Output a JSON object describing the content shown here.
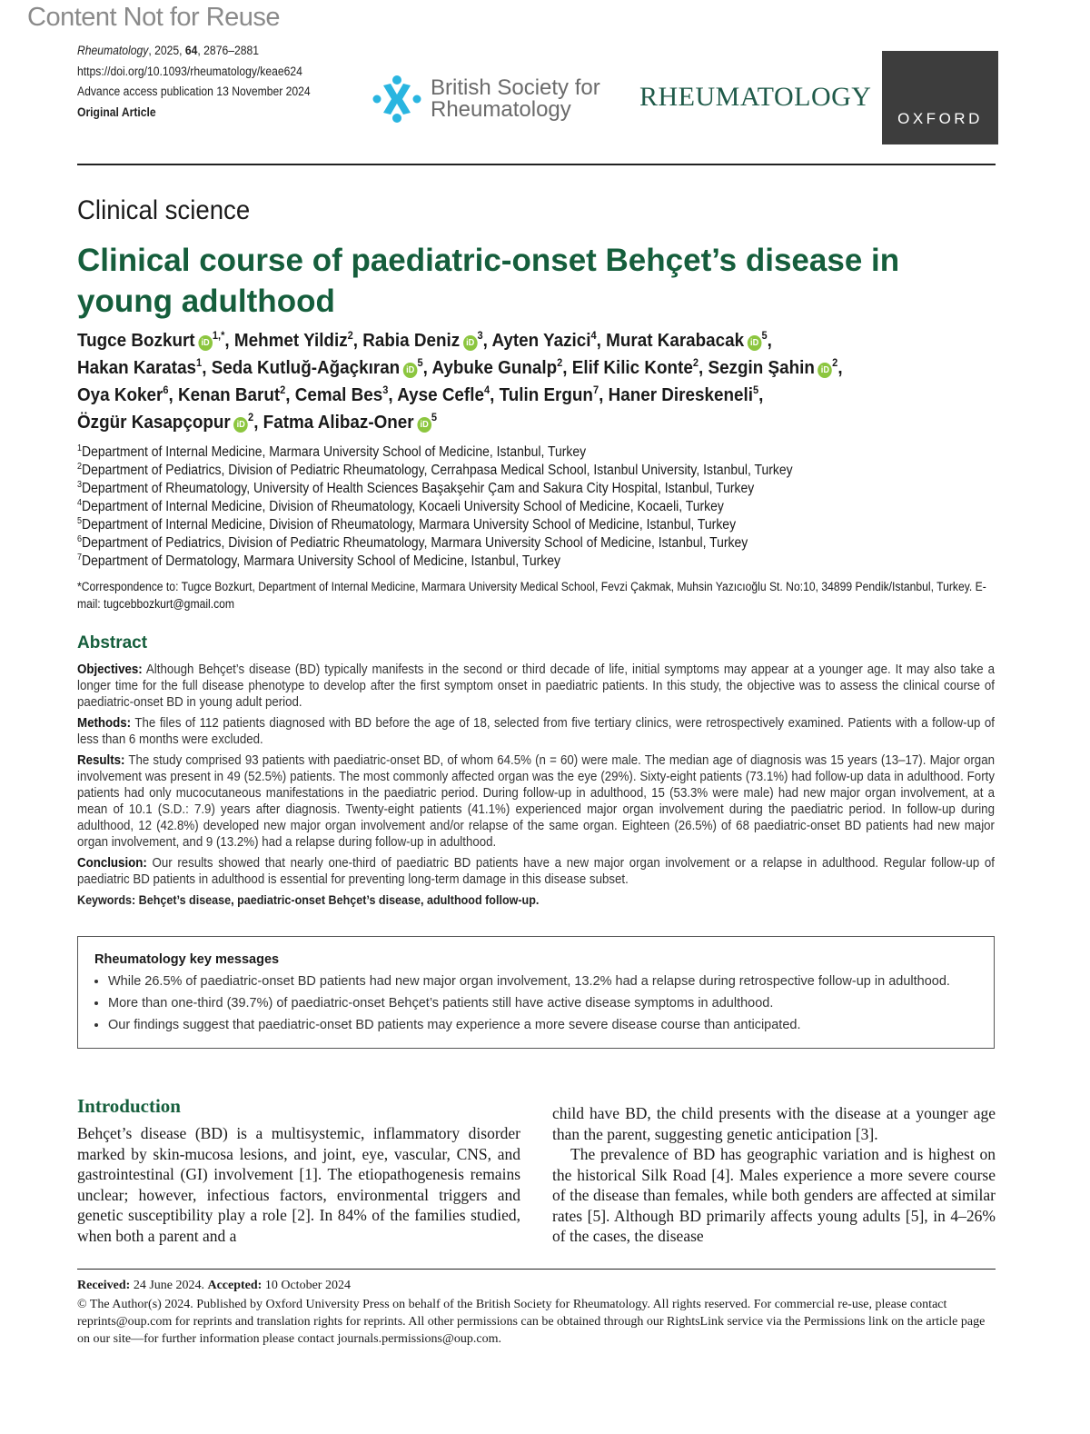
{
  "watermark": "Content Not for Reuse",
  "meta": {
    "journal": "Rheumatology",
    "year_vol_pages_pre": ", 2025, ",
    "volume": "64",
    "pages": ", 2876–2881",
    "doi": "https://doi.org/10.1093/rheumatology/keae624",
    "advance": "Advance access publication 13 November 2024",
    "article_type": "Original Article"
  },
  "logos": {
    "bsr_line1": "British Society for",
    "bsr_line2": "Rheumatology",
    "journal_logo": "RHEUMATOLOGY",
    "publisher": "OXFORD",
    "bsr_color": "#29b5e0",
    "title_color": "#155e3c"
  },
  "section": "Clinical science",
  "title": "Clinical course of paediatric-onset Behçet’s disease in young adulthood",
  "authors": [
    {
      "name": "Tugce Bozkurt",
      "sup": "1,*",
      "orcid": true,
      "sep": ", "
    },
    {
      "name": "Mehmet Yildiz",
      "sup": "2",
      "orcid": false,
      "sep": ", "
    },
    {
      "name": "Rabia Deniz",
      "sup": "3",
      "orcid": true,
      "sep": ", "
    },
    {
      "name": "Ayten Yazici",
      "sup": "4",
      "orcid": false,
      "sep": ", "
    },
    {
      "name": "Murat Karabacak",
      "sup": "5",
      "orcid": true,
      "sep": ", "
    },
    {
      "name": "Hakan Karatas",
      "sup": "1",
      "orcid": false,
      "sep": ", "
    },
    {
      "name": "Seda Kutluğ-Ağaçkıran",
      "sup": "5",
      "orcid": true,
      "sep": ", "
    },
    {
      "name": "Aybuke Gunalp",
      "sup": "2",
      "orcid": false,
      "sep": ", "
    },
    {
      "name": "Elif Kilic Konte",
      "sup": "2",
      "orcid": false,
      "sep": ", "
    },
    {
      "name": "Sezgin Şahin",
      "sup": "2",
      "orcid": true,
      "sep": ", "
    },
    {
      "name": "Oya Koker",
      "sup": "6",
      "orcid": false,
      "sep": ", "
    },
    {
      "name": "Kenan Barut",
      "sup": "2",
      "orcid": false,
      "sep": ", "
    },
    {
      "name": "Cemal Bes",
      "sup": "3",
      "orcid": false,
      "sep": ", "
    },
    {
      "name": "Ayse Cefle",
      "sup": "4",
      "orcid": false,
      "sep": ", "
    },
    {
      "name": "Tulin Ergun",
      "sup": "7",
      "orcid": false,
      "sep": ", "
    },
    {
      "name": "Haner Direskeneli",
      "sup": "5",
      "orcid": false,
      "sep": ", "
    },
    {
      "name": "Özgür Kasapçopur",
      "sup": "2",
      "orcid": true,
      "sep": ", "
    },
    {
      "name": "Fatma Alibaz-Oner",
      "sup": "5",
      "orcid": true,
      "sep": ""
    }
  ],
  "affiliations": [
    {
      "n": "1",
      "text": "Department of Internal Medicine, Marmara University School of Medicine, Istanbul, Turkey"
    },
    {
      "n": "2",
      "text": "Department of Pediatrics, Division of Pediatric Rheumatology, Cerrahpasa Medical School, Istanbul University, Istanbul, Turkey"
    },
    {
      "n": "3",
      "text": "Department of Rheumatology, University of Health Sciences Başakşehir Çam and Sakura City Hospital, Istanbul, Turkey"
    },
    {
      "n": "4",
      "text": "Department of Internal Medicine, Division of Rheumatology, Kocaeli University School of Medicine, Kocaeli, Turkey"
    },
    {
      "n": "5",
      "text": "Department of Internal Medicine, Division of Rheumatology, Marmara University School of Medicine, Istanbul, Turkey"
    },
    {
      "n": "6",
      "text": "Department of Pediatrics, Division of Pediatric Rheumatology, Marmara University School of Medicine, Istanbul, Turkey"
    },
    {
      "n": "7",
      "text": "Department of Dermatology, Marmara University School of Medicine, Istanbul, Turkey"
    }
  ],
  "correspondence": "*Correspondence to: Tugce Bozkurt, Department of Internal Medicine, Marmara University Medical School, Fevzi Çakmak, Muhsin Yazıcıoğlu St. No:10, 34899 Pendik/Istanbul, Turkey. E-mail: tugcebbozkurt@gmail.com",
  "abstract": {
    "heading": "Abstract",
    "sections": [
      {
        "label": "Objectives:",
        "text": " Although Behçet’s disease (BD) typically manifests in the second or third decade of life, initial symptoms may appear at a younger age. It may also take a longer time for the full disease phenotype to develop after the first symptom onset in paediatric patients. In this study, the objective was to assess the clinical course of paediatric-onset BD in young adult period."
      },
      {
        "label": "Methods:",
        "text": " The files of 112 patients diagnosed with BD before the age of 18, selected from five tertiary clinics, were retrospectively examined. Patients with a follow-up of less than 6 months were excluded."
      },
      {
        "label": "Results:",
        "text": " The study comprised 93 patients with paediatric-onset BD, of whom 64.5% (n = 60) were male. The median age of diagnosis was 15 years (13–17). Major organ involvement was present in 49 (52.5%) patients. The most commonly affected organ was the eye (29%). Sixty-eight patients (73.1%) had follow-up data in adulthood. Forty patients had only mucocutaneous manifestations in the paediatric period. During follow-up in adulthood, 15 (53.3% were male) had new major organ involvement, at a mean of 10.1 (S.D.: 7.9) years after diagnosis. Twenty-eight patients (41.1%) experienced major organ involvement during the paediatric period. In follow-up during adulthood, 12 (42.8%) developed new major organ involvement and/or relapse of the same organ. Eighteen (26.5%) of 68 paediatric-onset BD patients had new major organ involvement, and 9 (13.2%) had a relapse during follow-up in adulthood."
      },
      {
        "label": "Conclusion:",
        "text": " Our results showed that nearly one-third of paediatric BD patients have a new major organ involvement or a relapse in adulthood. Regular follow-up of paediatric BD patients in adulthood is essential for preventing long-term damage in this disease subset."
      }
    ],
    "keywords_label": "Keywords:",
    "keywords": " Behçet’s disease, paediatric-onset Behçet’s disease, adulthood follow-up."
  },
  "key_messages": {
    "heading": "Rheumatology key messages",
    "items": [
      "While 26.5% of paediatric-onset BD patients had new major organ involvement, 13.2% had a relapse during retrospective follow-up in adulthood.",
      "More than one-third (39.7%) of paediatric-onset Behçet’s patients still have active disease symptoms in adulthood.",
      "Our findings suggest that paediatric-onset BD patients may experience a more severe disease course than anticipated."
    ]
  },
  "introduction": {
    "heading": "Introduction",
    "left": "Behçet’s disease (BD) is a multisystemic, inflammatory disorder marked by skin-mucosa lesions, and joint, eye, vascular, CNS, and gastrointestinal (GI) involvement [1]. The etiopathogenesis remains unclear; however, infectious factors, environmental triggers and genetic susceptibility play a role [2]. In 84% of the families studied, when both a parent and a",
    "right1": "child have BD, the child presents with the disease at a younger age than the parent, suggesting genetic anticipation [3].",
    "right2": "The prevalence of BD has geographic variation and is highest on the historical Silk Road [4]. Males experience a more severe course of the disease than females, while both genders are affected at similar rates [5]. Although BD primarily affects young adults [5], in 4–26% of the cases, the disease"
  },
  "footer": {
    "received_label": "Received:",
    "received": " 24 June 2024. ",
    "accepted_label": "Accepted:",
    "accepted": " 10 October 2024",
    "copyright": "© The Author(s) 2024. Published by Oxford University Press on behalf of the British Society for Rheumatology. All rights reserved. For commercial re-use, please contact reprints@oup.com for reprints and translation rights for reprints. All other permissions can be obtained through our RightsLink service via the Permissions link on the article page on our site—for further information please contact journals.permissions@oup.com."
  }
}
